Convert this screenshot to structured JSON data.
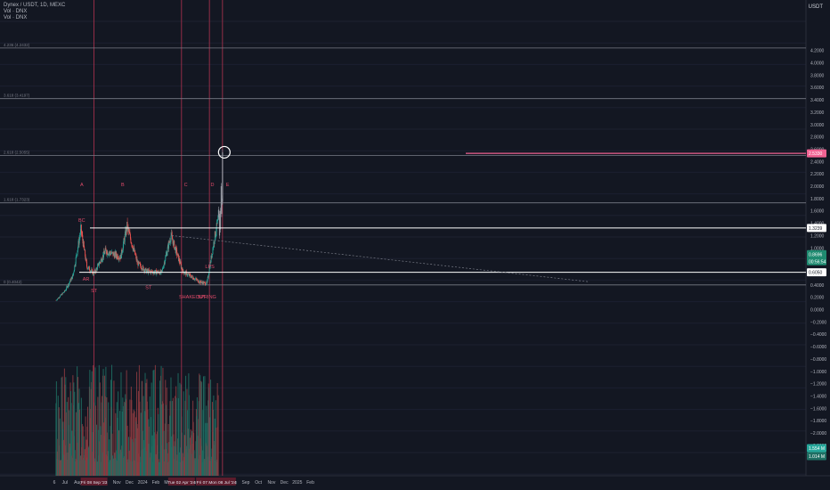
{
  "header": {
    "symbol_line": "Dynex / USDT, 1D, MEXC",
    "vol_line_1": "Vol · DNX",
    "vol_line_2": "Vol · DNX"
  },
  "axis_unit": "USDT",
  "colors": {
    "background": "#131722",
    "up": "#26a69a",
    "down": "#ef5350",
    "annotation": "#e04b6a",
    "marker_line": "#b2334f",
    "fib_line": "#787b86",
    "support_line": "#ffffff",
    "target_line": "#f06292"
  },
  "price_axis_labels": [
    "4.2000",
    "4.0000",
    "3.8000",
    "3.6000",
    "3.4000",
    "3.2000",
    "3.0000",
    "2.8000",
    "2.6000",
    "2.4000",
    "2.2000",
    "2.0000",
    "1.8000",
    "1.6000",
    "1.4000",
    "1.2000",
    "1.0000",
    "0.8000",
    "0.6000",
    "0.4000",
    "0.2000",
    "0.0000",
    "−0.2000",
    "−0.4000",
    "−0.6000",
    "−0.8000",
    "−1.0000",
    "−1.2000",
    "−1.4000",
    "−1.6000",
    "−1.8000",
    "−2.0000",
    "−2.2000"
  ],
  "price_badges": {
    "target": "2.5330",
    "upper_support": "1.3239",
    "current_price": "0.8696",
    "countdown": "00:56:54",
    "lower_support": "0.6050",
    "volume_1": "1.554 M",
    "volume_2": "1.014 M"
  },
  "time_axis_labels": [
    "6",
    "Jul",
    "Aug",
    "Sep",
    "Oct",
    "Nov",
    "Dec",
    "2024",
    "Feb",
    "Mar",
    "Apr",
    "May",
    "Jun",
    "Jul",
    "Aug",
    "Sep",
    "Oct",
    "Nov",
    "Dec",
    "2025",
    "Feb"
  ],
  "time_highlights": [
    "Fri 08 Sep '23",
    "Tue 02 Apr '24",
    "Fri 07 Jun '24",
    "Mon 08 Jul '24"
  ],
  "fib_labels": [
    {
      "text": "4.236 (4.2432)",
      "price": 4.24
    },
    {
      "text": "3.618 (3.4197)",
      "price": 3.42
    },
    {
      "text": "2.618 (2.5055)",
      "price": 2.5
    },
    {
      "text": "1.618 (1.7323)",
      "price": 1.73
    },
    {
      "text": "0 (0.4042)",
      "price": 0.4
    }
  ],
  "annotations": [
    "A",
    "B",
    "C",
    "D",
    "E",
    "BC",
    "AR",
    "ST",
    "ST",
    "SHAKEOUT",
    "SPRING",
    "LPS"
  ],
  "chart_data": {
    "type": "candlestick",
    "instrument": "Dynex / USDT",
    "timeframe": "1D",
    "exchange": "MEXC",
    "y_axis": {
      "ylim": [
        -2.2,
        4.25
      ]
    },
    "price_series_months": [
      "Jun 2023",
      "Jul 2023",
      "Aug 2023",
      "Sep 2023",
      "Oct 2023",
      "Nov 2023",
      "Dec 2023",
      "Jan 2024",
      "Feb 2024",
      "Mar 2024",
      "Apr 2024",
      "May 2024",
      "Jun 2024",
      "Jul 2024"
    ],
    "approx_close_path": [
      {
        "x": "2023-06-10",
        "y": 0.15
      },
      {
        "x": "2023-07-01",
        "y": 0.3
      },
      {
        "x": "2023-07-20",
        "y": 0.55
      },
      {
        "x": "2023-08-08",
        "y": 1.3
      },
      {
        "x": "2023-08-22",
        "y": 0.7
      },
      {
        "x": "2023-09-08",
        "y": 0.58
      },
      {
        "x": "2023-10-05",
        "y": 0.95
      },
      {
        "x": "2023-11-10",
        "y": 0.85
      },
      {
        "x": "2023-11-25",
        "y": 1.35
      },
      {
        "x": "2023-12-20",
        "y": 0.75
      },
      {
        "x": "2024-01-10",
        "y": 0.62
      },
      {
        "x": "2024-02-15",
        "y": 0.6
      },
      {
        "x": "2024-03-08",
        "y": 1.2
      },
      {
        "x": "2024-04-05",
        "y": 0.62
      },
      {
        "x": "2024-05-15",
        "y": 0.45
      },
      {
        "x": "2024-06-01",
        "y": 0.42
      },
      {
        "x": "2024-06-20",
        "y": 1.2
      },
      {
        "x": "2024-07-01",
        "y": 1.55
      },
      {
        "x": "2024-07-08",
        "y": 2.55
      }
    ],
    "horizontal_levels": {
      "upper_support": 1.3239,
      "lower_support": 0.605,
      "target": 2.533,
      "fib_0": 0.4042,
      "fib_1618": 1.7323,
      "fib_2618": 2.5055,
      "fib_3618": 3.4197,
      "fib_4236": 4.2432
    },
    "wyckoff_phases": [
      "A",
      "B",
      "C",
      "D",
      "E"
    ],
    "wyckoff_events": [
      "BC",
      "AR",
      "ST",
      "ST",
      "SHAKEOUT",
      "SPRING",
      "LPS"
    ],
    "volume": {
      "latest": [
        "1.554 M",
        "1.014 M"
      ]
    }
  }
}
